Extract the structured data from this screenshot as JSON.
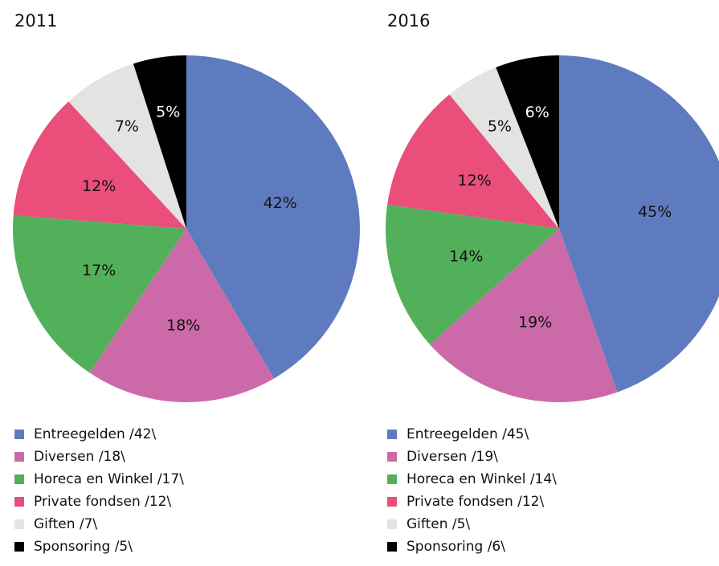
{
  "chart_data": [
    {
      "type": "pie",
      "title": "2011",
      "categories": [
        "Entreegelden /42\\",
        "Diversen /18\\",
        "Horeca en Winkel /17\\",
        "Private fondsen /12\\",
        "Giften /7\\",
        "Sponsoring /5\\"
      ],
      "values": [
        42,
        18,
        17,
        12,
        7,
        5
      ],
      "value_labels": [
        "42%",
        "18%",
        "17%",
        "12%",
        "7%",
        "5%"
      ],
      "colors": [
        "#5f7bbf",
        "#cc6aa9",
        "#52b05b",
        "#e94f7a",
        "#e3e3e3",
        "#000000"
      ]
    },
    {
      "type": "pie",
      "title": "2016",
      "categories": [
        "Entreegelden /45\\",
        "Diversen /19\\",
        "Horeca en Winkel /14\\",
        "Private fondsen /12\\",
        "Giften /5\\",
        "Sponsoring /6\\"
      ],
      "values": [
        45,
        19,
        14,
        12,
        5,
        6
      ],
      "value_labels": [
        "45%",
        "19%",
        "14%",
        "12%",
        "5%",
        "6%"
      ],
      "colors": [
        "#5f7bbf",
        "#cc6aa9",
        "#52b05b",
        "#e94f7a",
        "#e3e3e3",
        "#000000"
      ]
    }
  ]
}
